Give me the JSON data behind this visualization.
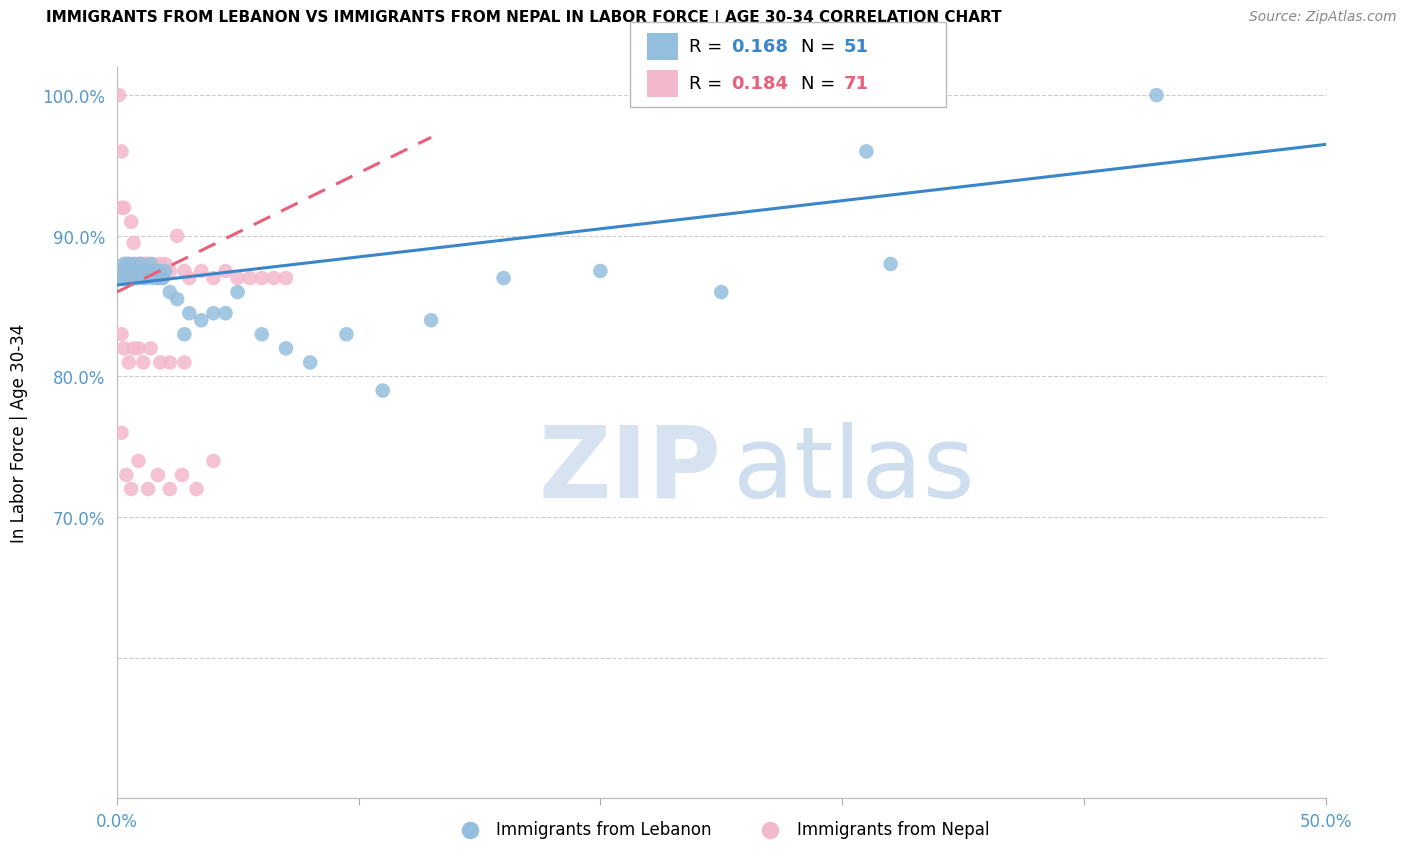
{
  "title": "IMMIGRANTS FROM LEBANON VS IMMIGRANTS FROM NEPAL IN LABOR FORCE | AGE 30-34 CORRELATION CHART",
  "source": "Source: ZipAtlas.com",
  "ylabel": "In Labor Force | Age 30-34",
  "xlim": [
    0.0,
    0.5
  ],
  "ylim": [
    0.5,
    1.02
  ],
  "lebanon_color": "#94bedd",
  "nepal_color": "#f4b8cc",
  "lebanon_line_color": "#3a86c8",
  "nepal_line_color": "#e8607a",
  "legend_R_lebanon": "0.168",
  "legend_N_lebanon": "51",
  "legend_R_nepal": "0.184",
  "legend_N_nepal": "71",
  "grid_color": "#cccccc",
  "axis_color": "#5599cc",
  "lebanon_scatter_x": [
    0.001,
    0.002,
    0.003,
    0.003,
    0.004,
    0.004,
    0.005,
    0.005,
    0.005,
    0.006,
    0.006,
    0.007,
    0.007,
    0.008,
    0.008,
    0.009,
    0.009,
    0.01,
    0.01,
    0.011,
    0.011,
    0.012,
    0.012,
    0.013,
    0.014,
    0.015,
    0.016,
    0.017,
    0.018,
    0.019,
    0.02,
    0.022,
    0.025,
    0.028,
    0.03,
    0.035,
    0.04,
    0.045,
    0.05,
    0.06,
    0.07,
    0.08,
    0.095,
    0.11,
    0.13,
    0.16,
    0.2,
    0.25,
    0.31,
    0.43,
    0.32
  ],
  "lebanon_scatter_y": [
    0.87,
    0.87,
    0.875,
    0.88,
    0.875,
    0.87,
    0.87,
    0.875,
    0.88,
    0.875,
    0.87,
    0.875,
    0.88,
    0.875,
    0.87,
    0.875,
    0.87,
    0.875,
    0.88,
    0.875,
    0.87,
    0.875,
    0.87,
    0.875,
    0.88,
    0.87,
    0.875,
    0.87,
    0.875,
    0.87,
    0.875,
    0.86,
    0.855,
    0.83,
    0.845,
    0.84,
    0.845,
    0.845,
    0.86,
    0.83,
    0.82,
    0.81,
    0.83,
    0.79,
    0.84,
    0.87,
    0.875,
    0.86,
    0.96,
    1.0,
    0.88
  ],
  "nepal_scatter_x": [
    0.001,
    0.001,
    0.002,
    0.002,
    0.002,
    0.003,
    0.003,
    0.003,
    0.004,
    0.004,
    0.004,
    0.005,
    0.005,
    0.005,
    0.006,
    0.006,
    0.007,
    0.007,
    0.007,
    0.008,
    0.008,
    0.008,
    0.009,
    0.009,
    0.01,
    0.01,
    0.011,
    0.011,
    0.012,
    0.012,
    0.013,
    0.014,
    0.015,
    0.016,
    0.017,
    0.018,
    0.019,
    0.02,
    0.022,
    0.025,
    0.028,
    0.03,
    0.035,
    0.04,
    0.045,
    0.05,
    0.055,
    0.06,
    0.065,
    0.07,
    0.002,
    0.003,
    0.005,
    0.007,
    0.009,
    0.011,
    0.014,
    0.018,
    0.022,
    0.028,
    0.002,
    0.004,
    0.006,
    0.009,
    0.013,
    0.017,
    0.022,
    0.027,
    0.033,
    0.04,
    0.001
  ],
  "nepal_scatter_y": [
    0.87,
    0.875,
    0.96,
    0.92,
    0.875,
    0.92,
    0.875,
    0.87,
    0.88,
    0.875,
    0.87,
    0.88,
    0.875,
    0.87,
    0.91,
    0.875,
    0.895,
    0.875,
    0.87,
    0.88,
    0.875,
    0.87,
    0.88,
    0.875,
    0.88,
    0.875,
    0.88,
    0.875,
    0.88,
    0.875,
    0.88,
    0.875,
    0.88,
    0.875,
    0.87,
    0.88,
    0.87,
    0.88,
    0.875,
    0.9,
    0.875,
    0.87,
    0.875,
    0.87,
    0.875,
    0.87,
    0.87,
    0.87,
    0.87,
    0.87,
    0.83,
    0.82,
    0.81,
    0.82,
    0.82,
    0.81,
    0.82,
    0.81,
    0.81,
    0.81,
    0.76,
    0.73,
    0.72,
    0.74,
    0.72,
    0.73,
    0.72,
    0.73,
    0.72,
    0.74,
    1.0
  ]
}
